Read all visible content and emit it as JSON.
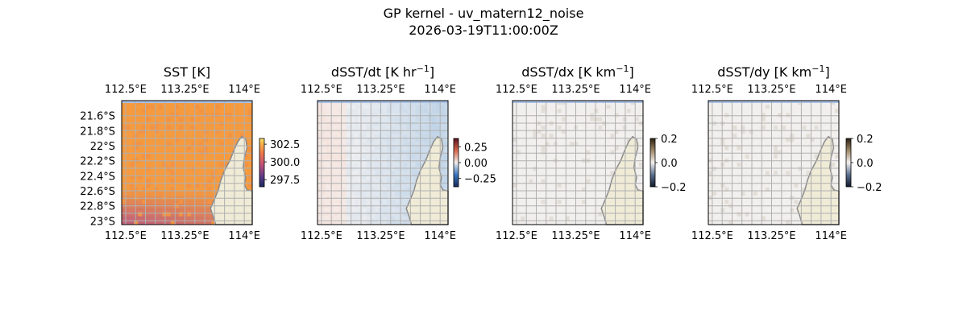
{
  "figure": {
    "title_line1": "GP kernel - uv_matern12_noise",
    "title_line2": "2026-03-19T11:00:00Z"
  },
  "colors": {
    "land": "#efebd6",
    "coast": "#8a8a8a",
    "water_edge": "#a9c2e6",
    "grid": "#b0b0b0"
  },
  "chart_data": [
    {
      "type": "heatmap",
      "title": "SST [K]",
      "xlim": [
        112.45,
        114.1
      ],
      "ylim": [
        -23.05,
        -21.4
      ],
      "x_ticks": [
        "112.5°E",
        "113.25°E",
        "114°E"
      ],
      "y_ticks": [
        "21.6°S",
        "21.8°S",
        "22°S",
        "22.2°S",
        "22.4°S",
        "22.6°S",
        "22.8°S",
        "23°S"
      ],
      "colorbar": {
        "ticks": [
          "302.5",
          "300.0",
          "297.5"
        ],
        "range": [
          296.5,
          303.3
        ],
        "colormap": "thermal"
      },
      "field": "warm",
      "grid": true
    },
    {
      "type": "heatmap",
      "title": "dSST/dt [K hr",
      "title_sup": "−1",
      "title_end": "]",
      "xlim": [
        112.45,
        114.1
      ],
      "ylim": [
        -23.05,
        -21.4
      ],
      "x_ticks": [
        "112.5°E",
        "113.25°E",
        "114°E"
      ],
      "colorbar": {
        "ticks": [
          "0.25",
          "0.00",
          "−0.25"
        ],
        "range": [
          -0.38,
          0.38
        ],
        "colormap": "balance"
      },
      "field": "diverging",
      "grid": true
    },
    {
      "type": "heatmap",
      "title": "dSST/dx [K km",
      "title_sup": "−1",
      "title_end": "]",
      "xlim": [
        112.45,
        114.1
      ],
      "ylim": [
        -23.05,
        -21.4
      ],
      "x_ticks": [
        "112.5°E",
        "113.25°E",
        "114°E"
      ],
      "colorbar": {
        "ticks": [
          "0.2",
          "0.0",
          "−0.2"
        ],
        "range": [
          -0.2,
          0.2
        ],
        "colormap": "diff"
      },
      "field": "gradient",
      "grid": true
    },
    {
      "type": "heatmap",
      "title": "dSST/dy [K km",
      "title_sup": "−1",
      "title_end": "]",
      "xlim": [
        112.45,
        114.1
      ],
      "ylim": [
        -23.05,
        -21.4
      ],
      "x_ticks": [
        "112.5°E",
        "113.25°E",
        "114°E"
      ],
      "colorbar": {
        "ticks": [
          "0.2",
          "0.0",
          "−0.2"
        ],
        "range": [
          -0.2,
          0.2
        ],
        "colormap": "diff"
      },
      "field": "gradient",
      "grid": true
    }
  ]
}
